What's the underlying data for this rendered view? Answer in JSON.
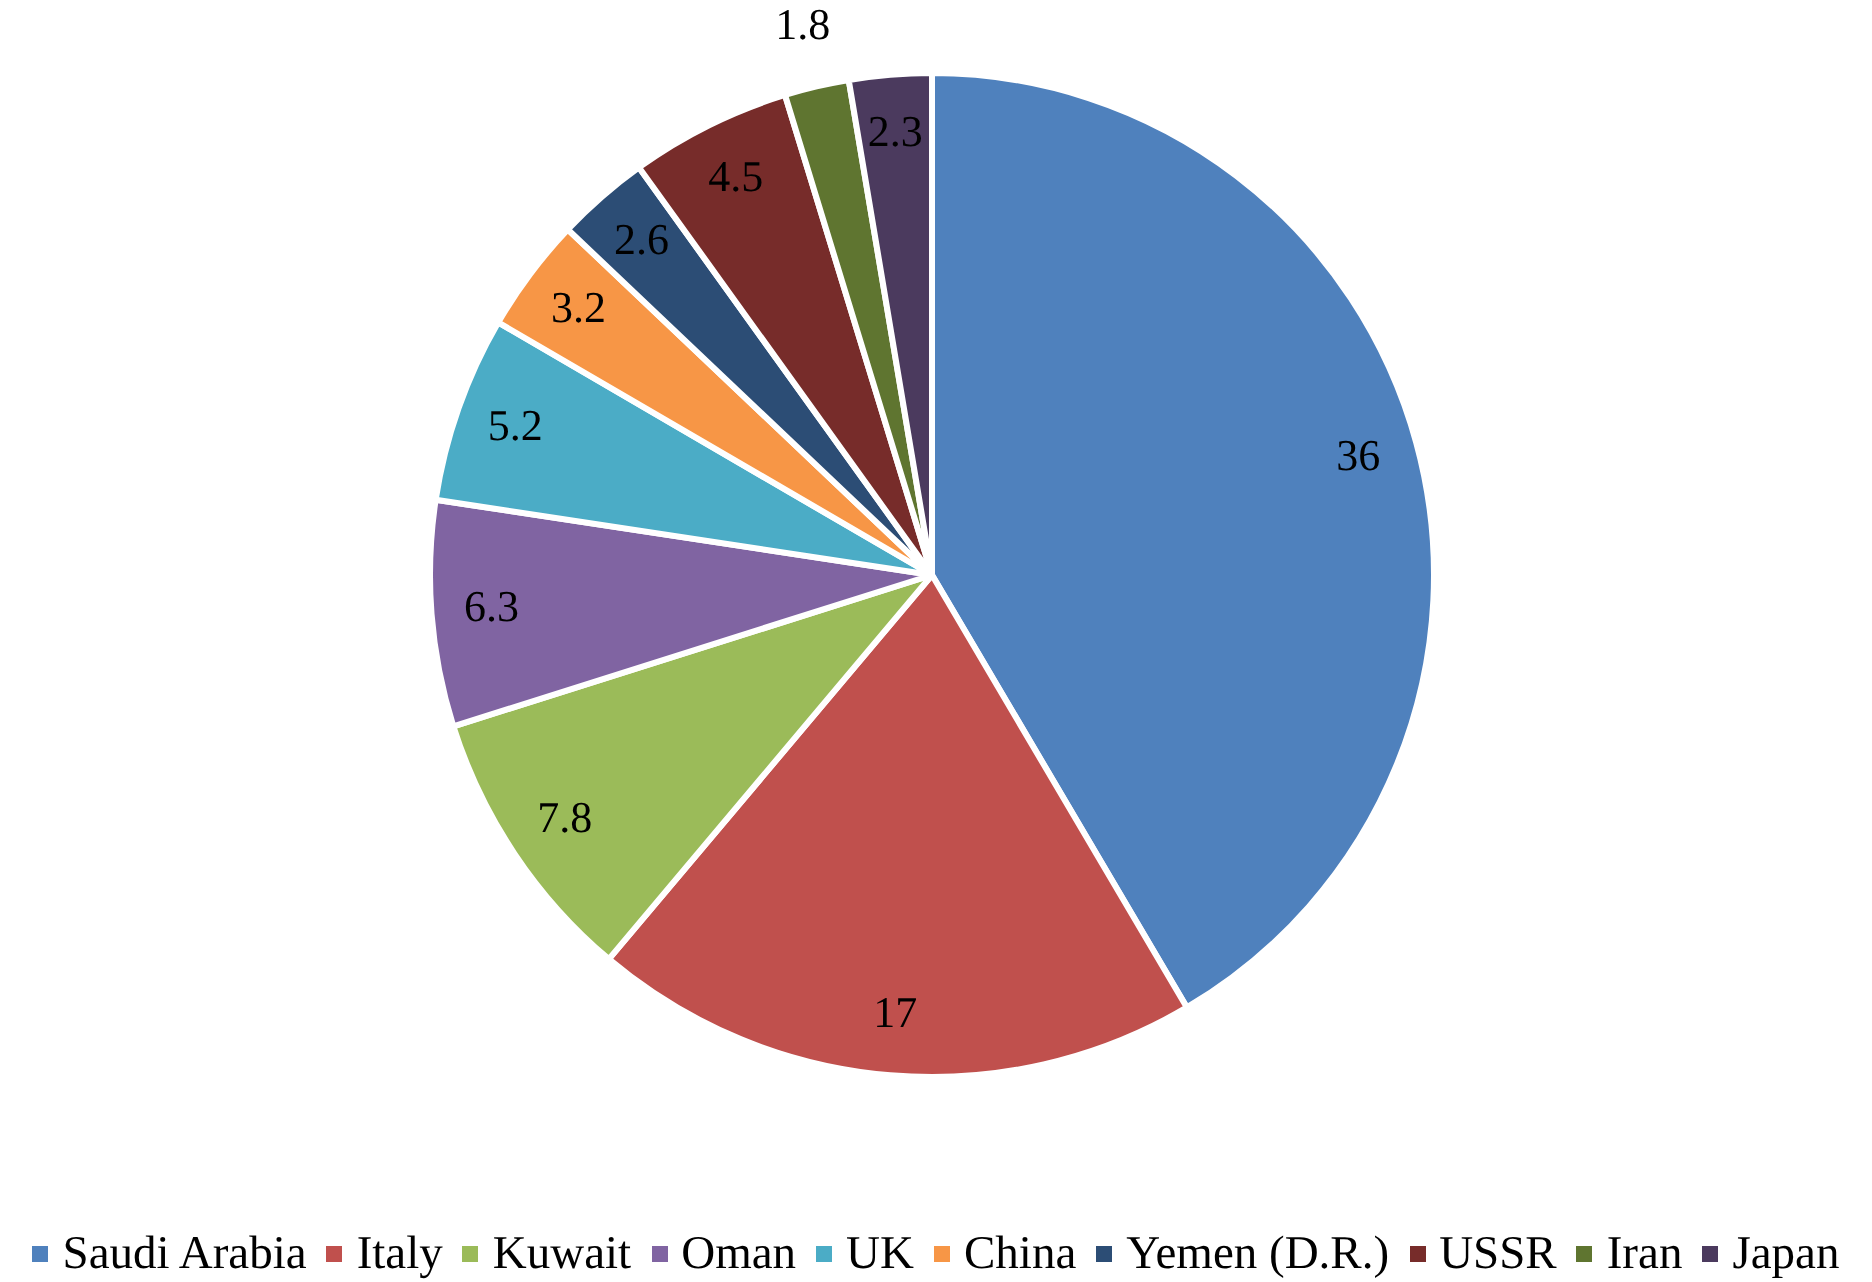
{
  "chart_data": {
    "type": "pie",
    "categories": [
      "Saudi Arabia",
      "Italy",
      "Kuwait",
      "Oman",
      "UK",
      "China",
      "Yemen (D.R.)",
      "USSR",
      "Iran",
      "Japan"
    ],
    "values": [
      36,
      17,
      7.8,
      6.3,
      5.2,
      3.2,
      2.6,
      4.5,
      1.8,
      2.3
    ],
    "colors": [
      "#4f81bd",
      "#c0504d",
      "#9bbb59",
      "#8064a2",
      "#4bacc6",
      "#f79646",
      "#2c4d75",
      "#772c2a",
      "#5f7530",
      "#4b3a5e"
    ],
    "data_labels": true,
    "legend": "bottom"
  }
}
